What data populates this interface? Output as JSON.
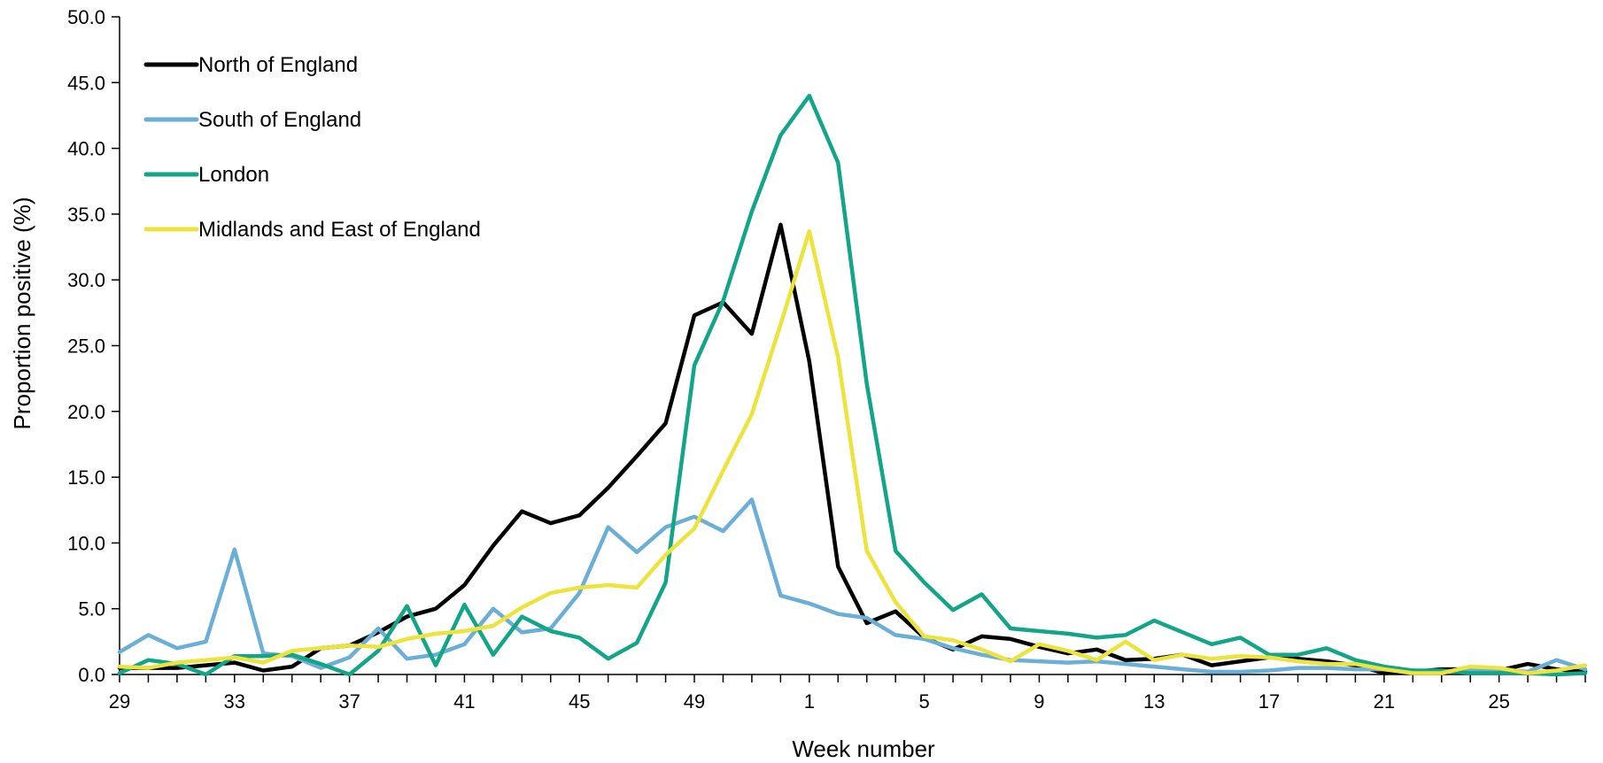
{
  "chart_data": {
    "type": "line",
    "xlabel": "Week number",
    "ylabel": "Proportion positive (%)",
    "ylim": [
      0,
      50
    ],
    "y_ticks": [
      "0.0",
      "5.0",
      "10.0",
      "15.0",
      "20.0",
      "25.0",
      "30.0",
      "35.0",
      "40.0",
      "45.0",
      "50.0"
    ],
    "x_tick_labels": [
      "29",
      "33",
      "37",
      "41",
      "45",
      "49",
      "1",
      "5",
      "9",
      "13",
      "17",
      "21",
      "25"
    ],
    "x": [
      "29",
      "30",
      "31",
      "32",
      "33",
      "34",
      "35",
      "36",
      "37",
      "38",
      "39",
      "40",
      "41",
      "42",
      "43",
      "44",
      "45",
      "46",
      "47",
      "48",
      "49",
      "50",
      "51",
      "52",
      "53",
      "1",
      "2",
      "3",
      "4",
      "5",
      "6",
      "7",
      "8",
      "9",
      "10",
      "11",
      "12",
      "13",
      "14",
      "15",
      "16",
      "17",
      "18",
      "19",
      "20",
      "21",
      "22",
      "23",
      "24",
      "25",
      "26",
      "27"
    ],
    "grid": false,
    "legend_position": "top-left",
    "series": [
      {
        "name": "North of England",
        "color": "#000000",
        "values": [
          0.5,
          0.5,
          0.5,
          0.7,
          0.9,
          0.3,
          0.6,
          2.0,
          2.2,
          3.2,
          4.4,
          5.0,
          6.8,
          9.8,
          12.4,
          11.5,
          12.1,
          14.2,
          16.6,
          19.1,
          27.3,
          28.3,
          25.9,
          34.2,
          23.8,
          8.2,
          3.9,
          4.8,
          2.8,
          1.9,
          2.9,
          2.7,
          2.1,
          1.6,
          1.9,
          1.1,
          1.2,
          1.5,
          0.7,
          1.0,
          1.3,
          1.2,
          1.0,
          0.7,
          0.1,
          0.2,
          0.4,
          0.4,
          0.3,
          0.8,
          0.4,
          0.2
        ]
      },
      {
        "name": "South of England",
        "color": "#6baed6",
        "values": [
          1.7,
          3.0,
          2.0,
          2.5,
          9.5,
          1.6,
          1.4,
          0.5,
          1.3,
          3.5,
          1.2,
          1.5,
          2.3,
          5.0,
          3.2,
          3.5,
          6.2,
          11.2,
          9.3,
          11.2,
          12.0,
          10.9,
          13.3,
          6.0,
          5.4,
          4.6,
          4.3,
          3.0,
          2.7,
          2.0,
          1.5,
          1.1,
          1.0,
          0.9,
          1.0,
          0.8,
          0.6,
          0.4,
          0.2,
          0.2,
          0.3,
          0.5,
          0.5,
          0.4,
          0.4,
          0.3,
          0.2,
          0.3,
          0.4,
          0.2,
          1.1,
          0.4
        ]
      },
      {
        "name": "London",
        "color": "#12a588",
        "values": [
          0.1,
          1.1,
          0.8,
          0.0,
          1.4,
          1.4,
          1.5,
          0.8,
          0.0,
          1.8,
          5.2,
          0.7,
          5.3,
          1.5,
          4.4,
          3.3,
          2.8,
          1.2,
          2.4,
          7.0,
          23.5,
          28.4,
          35.2,
          41.0,
          44.0,
          38.9,
          22.1,
          9.4,
          7.0,
          4.9,
          6.1,
          3.5,
          3.3,
          3.1,
          2.8,
          3.0,
          4.1,
          3.2,
          2.3,
          2.8,
          1.5,
          1.5,
          2.0,
          1.1,
          0.6,
          0.3,
          0.3,
          0.1,
          0.1,
          0.1,
          0.0,
          0.1
        ]
      },
      {
        "name": "Midlands and East of England",
        "color": "#ece43c",
        "values": [
          0.6,
          0.5,
          0.9,
          1.1,
          1.3,
          0.9,
          1.8,
          2.0,
          2.2,
          2.1,
          2.7,
          3.1,
          3.3,
          3.7,
          5.1,
          6.2,
          6.6,
          6.8,
          6.6,
          9.1,
          11.1,
          15.5,
          19.8,
          26.6,
          33.7,
          24.1,
          9.4,
          5.5,
          2.9,
          2.6,
          1.9,
          1.0,
          2.3,
          1.8,
          1.1,
          2.5,
          1.1,
          1.5,
          1.2,
          1.4,
          1.3,
          1.0,
          0.8,
          0.8,
          0.4,
          0.1,
          0.1,
          0.6,
          0.5,
          0.1,
          0.3,
          0.7
        ]
      }
    ]
  }
}
